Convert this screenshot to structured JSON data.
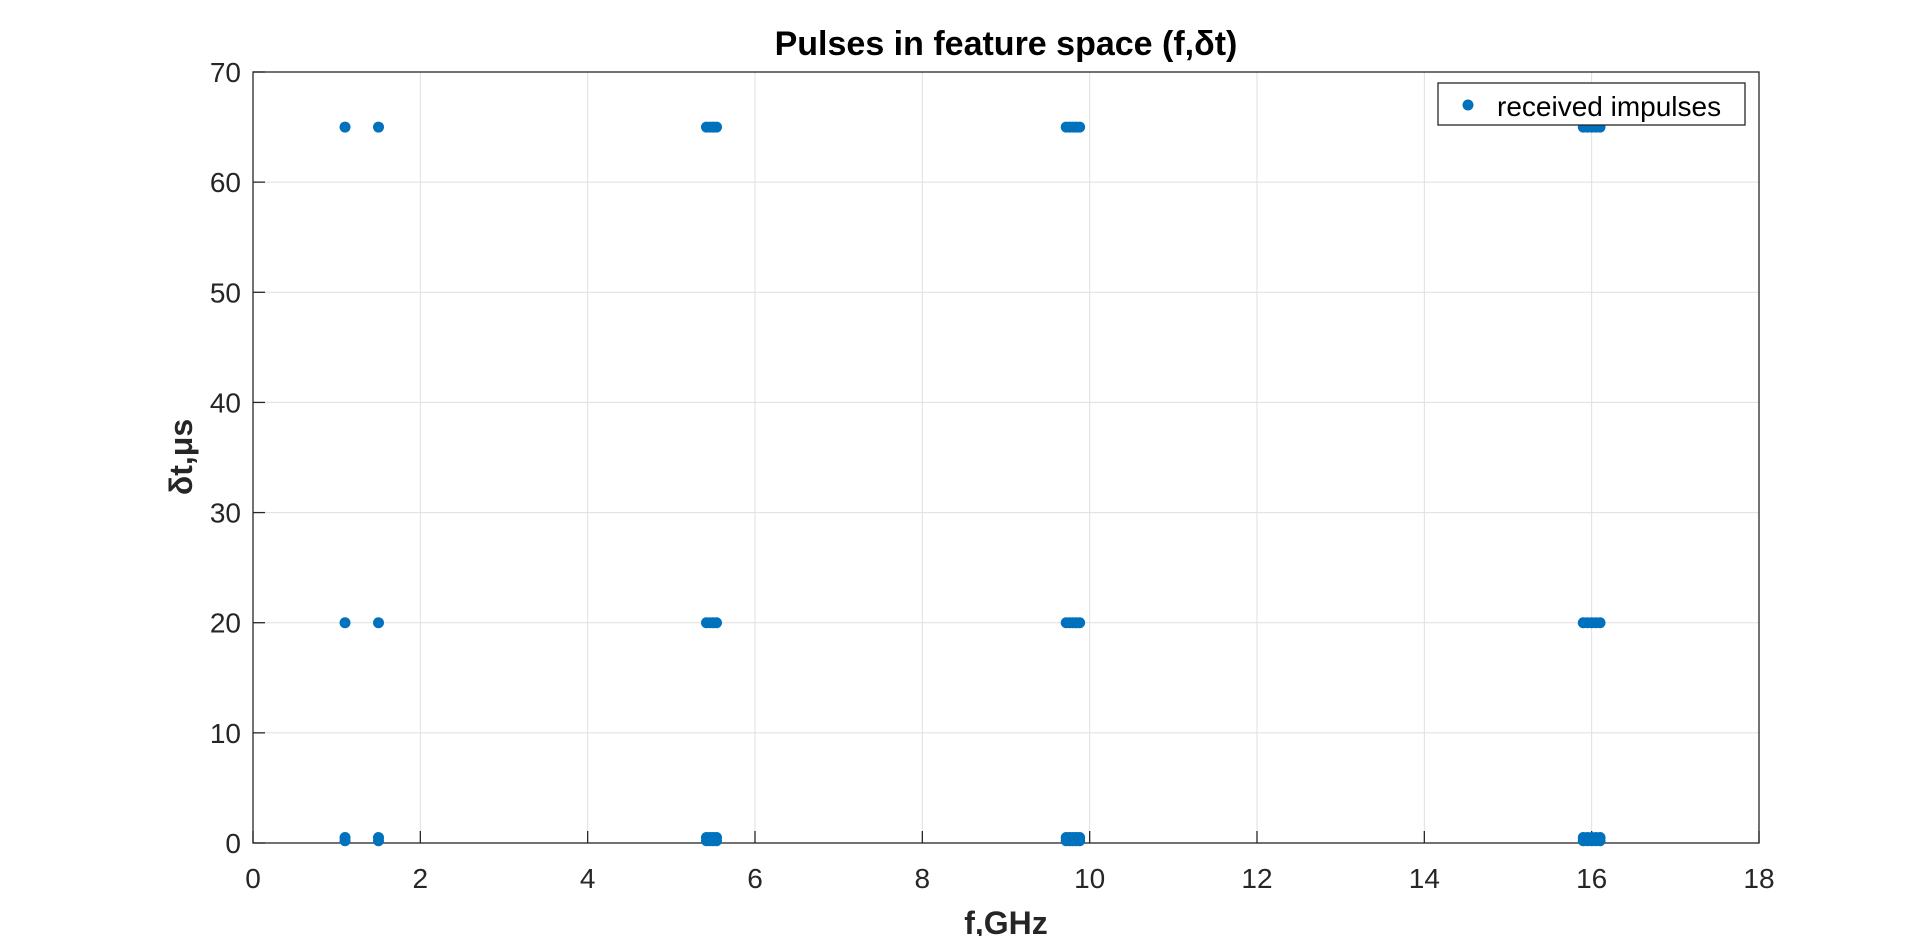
{
  "chart_data": {
    "type": "scatter",
    "title": "Pulses in feature space (f,δt)",
    "xlabel": "f,GHz",
    "ylabel": "δt,μs",
    "xlim": [
      0,
      18
    ],
    "ylim": [
      0,
      70
    ],
    "xticks": [
      0,
      2,
      4,
      6,
      8,
      10,
      12,
      14,
      16,
      18
    ],
    "yticks": [
      0,
      10,
      20,
      30,
      40,
      50,
      60,
      70
    ],
    "grid": true,
    "legend_position": "top-right",
    "marker_color": "#0072BD",
    "series": [
      {
        "name": "received impulses",
        "points": [
          {
            "x": 1.1,
            "y": 65
          },
          {
            "x": 1.5,
            "y": 65
          },
          {
            "x": 1.1,
            "y": 20
          },
          {
            "x": 1.5,
            "y": 20
          },
          {
            "x": 1.1,
            "y": 0.5
          },
          {
            "x": 1.1,
            "y": 0.2
          },
          {
            "x": 1.5,
            "y": 0.5
          },
          {
            "x": 1.5,
            "y": 0.2
          },
          {
            "x": 5.42,
            "y": 65
          },
          {
            "x": 5.46,
            "y": 65
          },
          {
            "x": 5.5,
            "y": 65
          },
          {
            "x": 5.54,
            "y": 65
          },
          {
            "x": 5.42,
            "y": 20
          },
          {
            "x": 5.46,
            "y": 20
          },
          {
            "x": 5.5,
            "y": 20
          },
          {
            "x": 5.54,
            "y": 20
          },
          {
            "x": 5.42,
            "y": 0.5
          },
          {
            "x": 5.46,
            "y": 0.5
          },
          {
            "x": 5.5,
            "y": 0.5
          },
          {
            "x": 5.54,
            "y": 0.5
          },
          {
            "x": 5.42,
            "y": 0.2
          },
          {
            "x": 5.46,
            "y": 0.2
          },
          {
            "x": 5.5,
            "y": 0.2
          },
          {
            "x": 5.54,
            "y": 0.2
          },
          {
            "x": 9.72,
            "y": 65
          },
          {
            "x": 9.76,
            "y": 65
          },
          {
            "x": 9.8,
            "y": 65
          },
          {
            "x": 9.84,
            "y": 65
          },
          {
            "x": 9.88,
            "y": 65
          },
          {
            "x": 9.72,
            "y": 20
          },
          {
            "x": 9.76,
            "y": 20
          },
          {
            "x": 9.8,
            "y": 20
          },
          {
            "x": 9.84,
            "y": 20
          },
          {
            "x": 9.88,
            "y": 20
          },
          {
            "x": 9.72,
            "y": 0.5
          },
          {
            "x": 9.76,
            "y": 0.5
          },
          {
            "x": 9.8,
            "y": 0.5
          },
          {
            "x": 9.84,
            "y": 0.5
          },
          {
            "x": 9.88,
            "y": 0.5
          },
          {
            "x": 9.72,
            "y": 0.2
          },
          {
            "x": 9.76,
            "y": 0.2
          },
          {
            "x": 9.8,
            "y": 0.2
          },
          {
            "x": 9.84,
            "y": 0.2
          },
          {
            "x": 9.88,
            "y": 0.2
          },
          {
            "x": 15.9,
            "y": 65
          },
          {
            "x": 15.95,
            "y": 65
          },
          {
            "x": 16.0,
            "y": 65
          },
          {
            "x": 16.05,
            "y": 65
          },
          {
            "x": 16.1,
            "y": 65
          },
          {
            "x": 15.9,
            "y": 20
          },
          {
            "x": 15.95,
            "y": 20
          },
          {
            "x": 16.0,
            "y": 20
          },
          {
            "x": 16.05,
            "y": 20
          },
          {
            "x": 16.1,
            "y": 20
          },
          {
            "x": 15.9,
            "y": 0.5
          },
          {
            "x": 15.95,
            "y": 0.5
          },
          {
            "x": 16.0,
            "y": 0.5
          },
          {
            "x": 16.05,
            "y": 0.5
          },
          {
            "x": 16.1,
            "y": 0.5
          },
          {
            "x": 15.9,
            "y": 0.2
          },
          {
            "x": 15.95,
            "y": 0.2
          },
          {
            "x": 16.0,
            "y": 0.2
          },
          {
            "x": 16.05,
            "y": 0.2
          },
          {
            "x": 16.1,
            "y": 0.2
          }
        ]
      }
    ]
  }
}
